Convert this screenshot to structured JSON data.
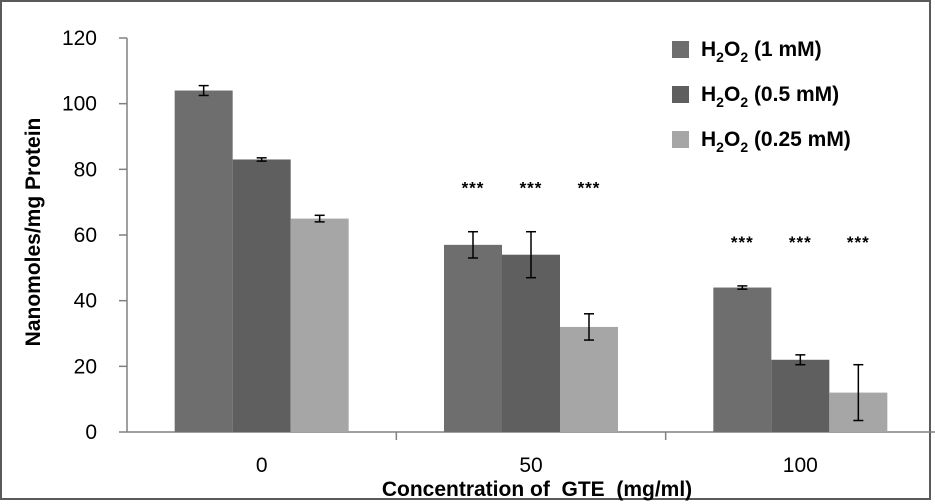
{
  "chart_data": {
    "type": "bar",
    "categories": [
      "0",
      "50",
      "100"
    ],
    "series": [
      {
        "name": "H2O2 (1 mM)",
        "name_parts": [
          "H",
          "2",
          "O",
          "2",
          " (1 mM)"
        ],
        "color": "#6e6e6e",
        "values": [
          104,
          57,
          44
        ],
        "errors": [
          1.5,
          4,
          0.5
        ]
      },
      {
        "name": "H2O2 (0.5 mM)",
        "name_parts": [
          "H",
          "2",
          "O",
          "2",
          " (0.5 mM)"
        ],
        "color": "#5f5f5f",
        "values": [
          83,
          54,
          22
        ],
        "errors": [
          0.5,
          7,
          1.5
        ]
      },
      {
        "name": "H2O2 (0.25 mM)",
        "name_parts": [
          "H",
          "2",
          "O",
          "2",
          " (0.25 mM)"
        ],
        "color": "#a6a6a6",
        "values": [
          65,
          32,
          12
        ],
        "errors": [
          1,
          4,
          8.5
        ]
      }
    ],
    "significance": [
      [
        "",
        "",
        ""
      ],
      [
        "***",
        "***",
        "***"
      ],
      [
        "***",
        "***",
        "***"
      ]
    ],
    "yticks": [
      "0",
      "20",
      "40",
      "60",
      "80",
      "100",
      "120"
    ],
    "ylim": [
      0,
      120
    ],
    "ylabel": "Nanomoles/mg Protein",
    "xlabel": "Concentration of  GTE  (mg/ml)",
    "legend": "top-right",
    "grid": false
  }
}
